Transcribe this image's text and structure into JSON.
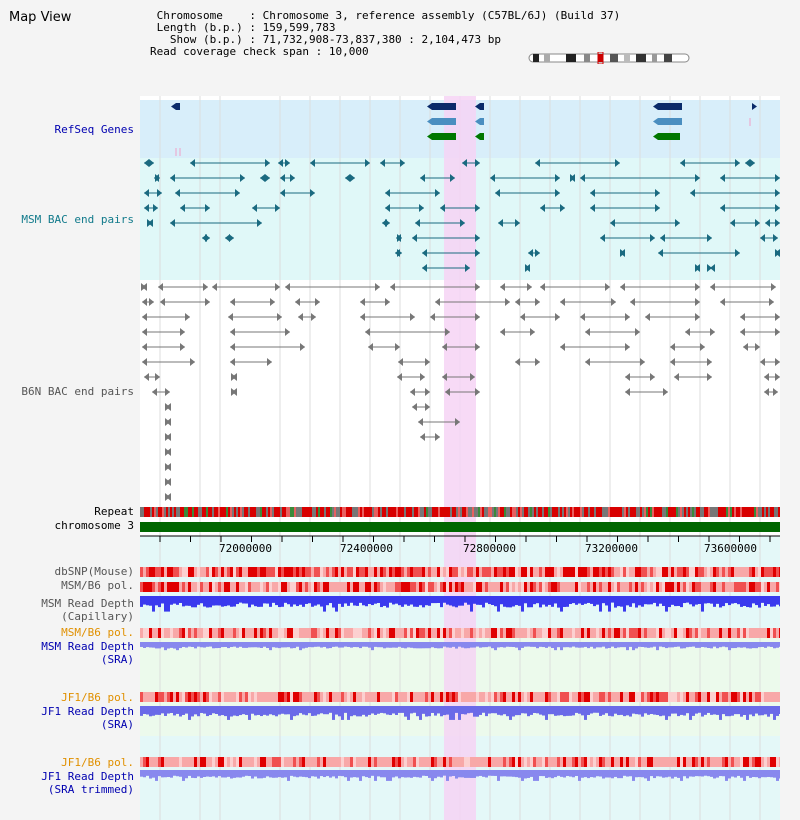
{
  "page_title": "Map View",
  "info": {
    "chromosome_label": "Chromosome",
    "chromosome_value": "Chromosome 3, reference assembly (C57BL/6J) (Build 37)",
    "length_label": "Length (b.p.)",
    "length_value": "159,599,783",
    "show_label": "Show (b.p.)",
    "show_value": "71,732,908-73,837,380 : 2,104,473 bp",
    "coverage_label": "Read coverage check span",
    "coverage_value": "10,000"
  },
  "tracks": {
    "refseq": "RefSeq Genes",
    "msm_bac": "MSM BAC end pairs",
    "b6n_bac": "B6N BAC end pairs",
    "repeat": "Repeat",
    "chromosome": "chromosome 3",
    "dbsnp": "dbSNP(Mouse)",
    "msm_b6_pol_1": "MSM/B6 pol.",
    "msm_depth_cap_1": "MSM Read Depth",
    "msm_depth_cap_2": "(Capillary)",
    "msm_b6_pol_2": "MSM/B6 pol.",
    "msm_depth_sra_1": "MSM Read Depth",
    "msm_depth_sra_2": "(SRA)",
    "jf1_b6_pol_1": "JF1/B6 pol.",
    "jf1_depth_sra_1": "JF1 Read Depth",
    "jf1_depth_sra_2": "(SRA)",
    "jf1_b6_pol_2": "JF1/B6 pol.",
    "jf1_depth_trim_1": "JF1 Read Depth",
    "jf1_depth_trim_2": "(SRA trimmed)"
  },
  "axis": {
    "ticks": [
      "72000000",
      "72400000",
      "72800000",
      "73200000",
      "73600000"
    ]
  },
  "colors": {
    "highlight": "#f6d4f4",
    "refseq_bg": "#d8eefa",
    "msm_bg": "#e0f8f8",
    "chromosome_bar": "#006600",
    "gene_dark": "#0a2a6a",
    "gene_mid": "#4a8ec0",
    "gene_green": "#007700"
  }
}
